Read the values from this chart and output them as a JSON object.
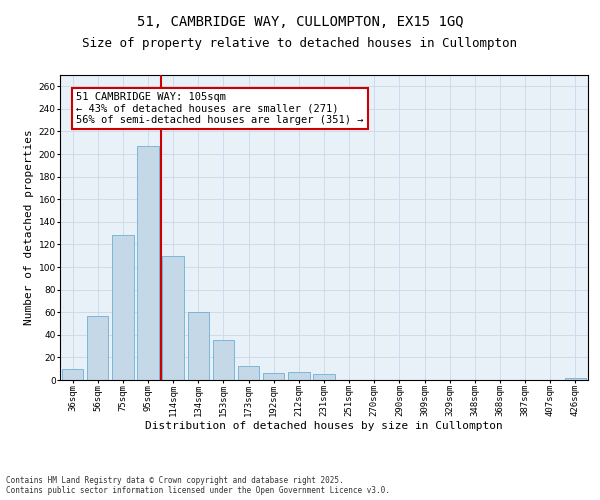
{
  "title_line1": "51, CAMBRIDGE WAY, CULLOMPTON, EX15 1GQ",
  "title_line2": "Size of property relative to detached houses in Cullompton",
  "xlabel": "Distribution of detached houses by size in Cullompton",
  "ylabel": "Number of detached properties",
  "categories": [
    "36sqm",
    "56sqm",
    "75sqm",
    "95sqm",
    "114sqm",
    "134sqm",
    "153sqm",
    "173sqm",
    "192sqm",
    "212sqm",
    "231sqm",
    "251sqm",
    "270sqm",
    "290sqm",
    "309sqm",
    "329sqm",
    "348sqm",
    "368sqm",
    "387sqm",
    "407sqm",
    "426sqm"
  ],
  "values": [
    10,
    57,
    128,
    207,
    110,
    60,
    35,
    12,
    6,
    7,
    5,
    0,
    0,
    0,
    0,
    0,
    0,
    0,
    0,
    0,
    2
  ],
  "bar_color": "#c5d8e8",
  "bar_edge_color": "#6fafd4",
  "vline_x": 3.5,
  "vline_color": "#cc0000",
  "annotation_text": "51 CAMBRIDGE WAY: 105sqm\n← 43% of detached houses are smaller (271)\n56% of semi-detached houses are larger (351) →",
  "annotation_box_color": "#ffffff",
  "annotation_box_edge": "#cc0000",
  "ylim": [
    0,
    270
  ],
  "yticks": [
    0,
    20,
    40,
    60,
    80,
    100,
    120,
    140,
    160,
    180,
    200,
    220,
    240,
    260
  ],
  "grid_color": "#c8d8e8",
  "background_color": "#e8f0f8",
  "footer_text": "Contains HM Land Registry data © Crown copyright and database right 2025.\nContains public sector information licensed under the Open Government Licence v3.0.",
  "title_fontsize": 10,
  "subtitle_fontsize": 9,
  "axis_label_fontsize": 8,
  "tick_fontsize": 6.5,
  "annotation_fontsize": 7.5,
  "footer_fontsize": 5.5
}
